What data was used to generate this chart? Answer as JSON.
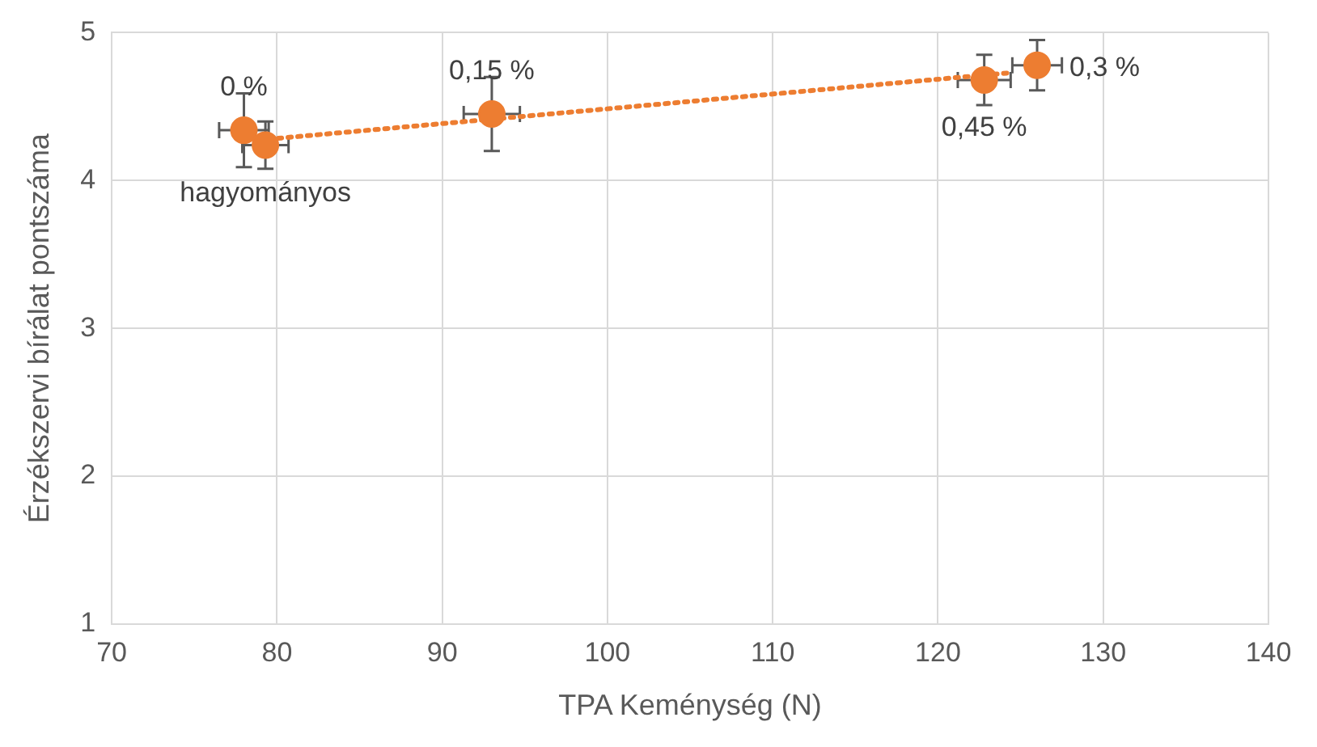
{
  "chart_data": {
    "type": "scatter",
    "xlabel": "TPA Keménység (N)",
    "ylabel": "Érzékszervi bírálat pontszáma",
    "xlim": [
      70,
      140
    ],
    "xticks": [
      70,
      80,
      90,
      100,
      110,
      120,
      130,
      140
    ],
    "ylim": [
      1,
      5
    ],
    "yticks": [
      1,
      2,
      3,
      4,
      5
    ],
    "grid": true,
    "legend": false,
    "series": [
      {
        "color": "#ed7d31",
        "marker": "circle",
        "x": [
          78,
          79.3,
          93,
          122.8,
          126
        ],
        "values": [
          4.34,
          4.24,
          4.45,
          4.68,
          4.78
        ],
        "errors": [
          0.25,
          0.16,
          0.25,
          0.17,
          0.17
        ],
        "xerrors": [
          1.5,
          1.4,
          1.7,
          1.6,
          1.5
        ]
      },
      {
        "type": "line",
        "color": "#ed7d31",
        "line_style": "dotted",
        "marker": "none",
        "x": [
          79.5,
          124.5
        ],
        "values": [
          4.28,
          4.73
        ]
      }
    ],
    "annotations": [
      {
        "text": "0 %",
        "x": 78,
        "y": 4.34
      },
      {
        "text": "hagyományos",
        "x": 79.3,
        "y": 4.24
      },
      {
        "text": "0,15 %",
        "x": 93,
        "y": 4.45
      },
      {
        "text": "0,45 %",
        "x": 122.8,
        "y": 4.68
      },
      {
        "text": "0,3 %",
        "x": 126,
        "y": 4.78
      }
    ]
  }
}
